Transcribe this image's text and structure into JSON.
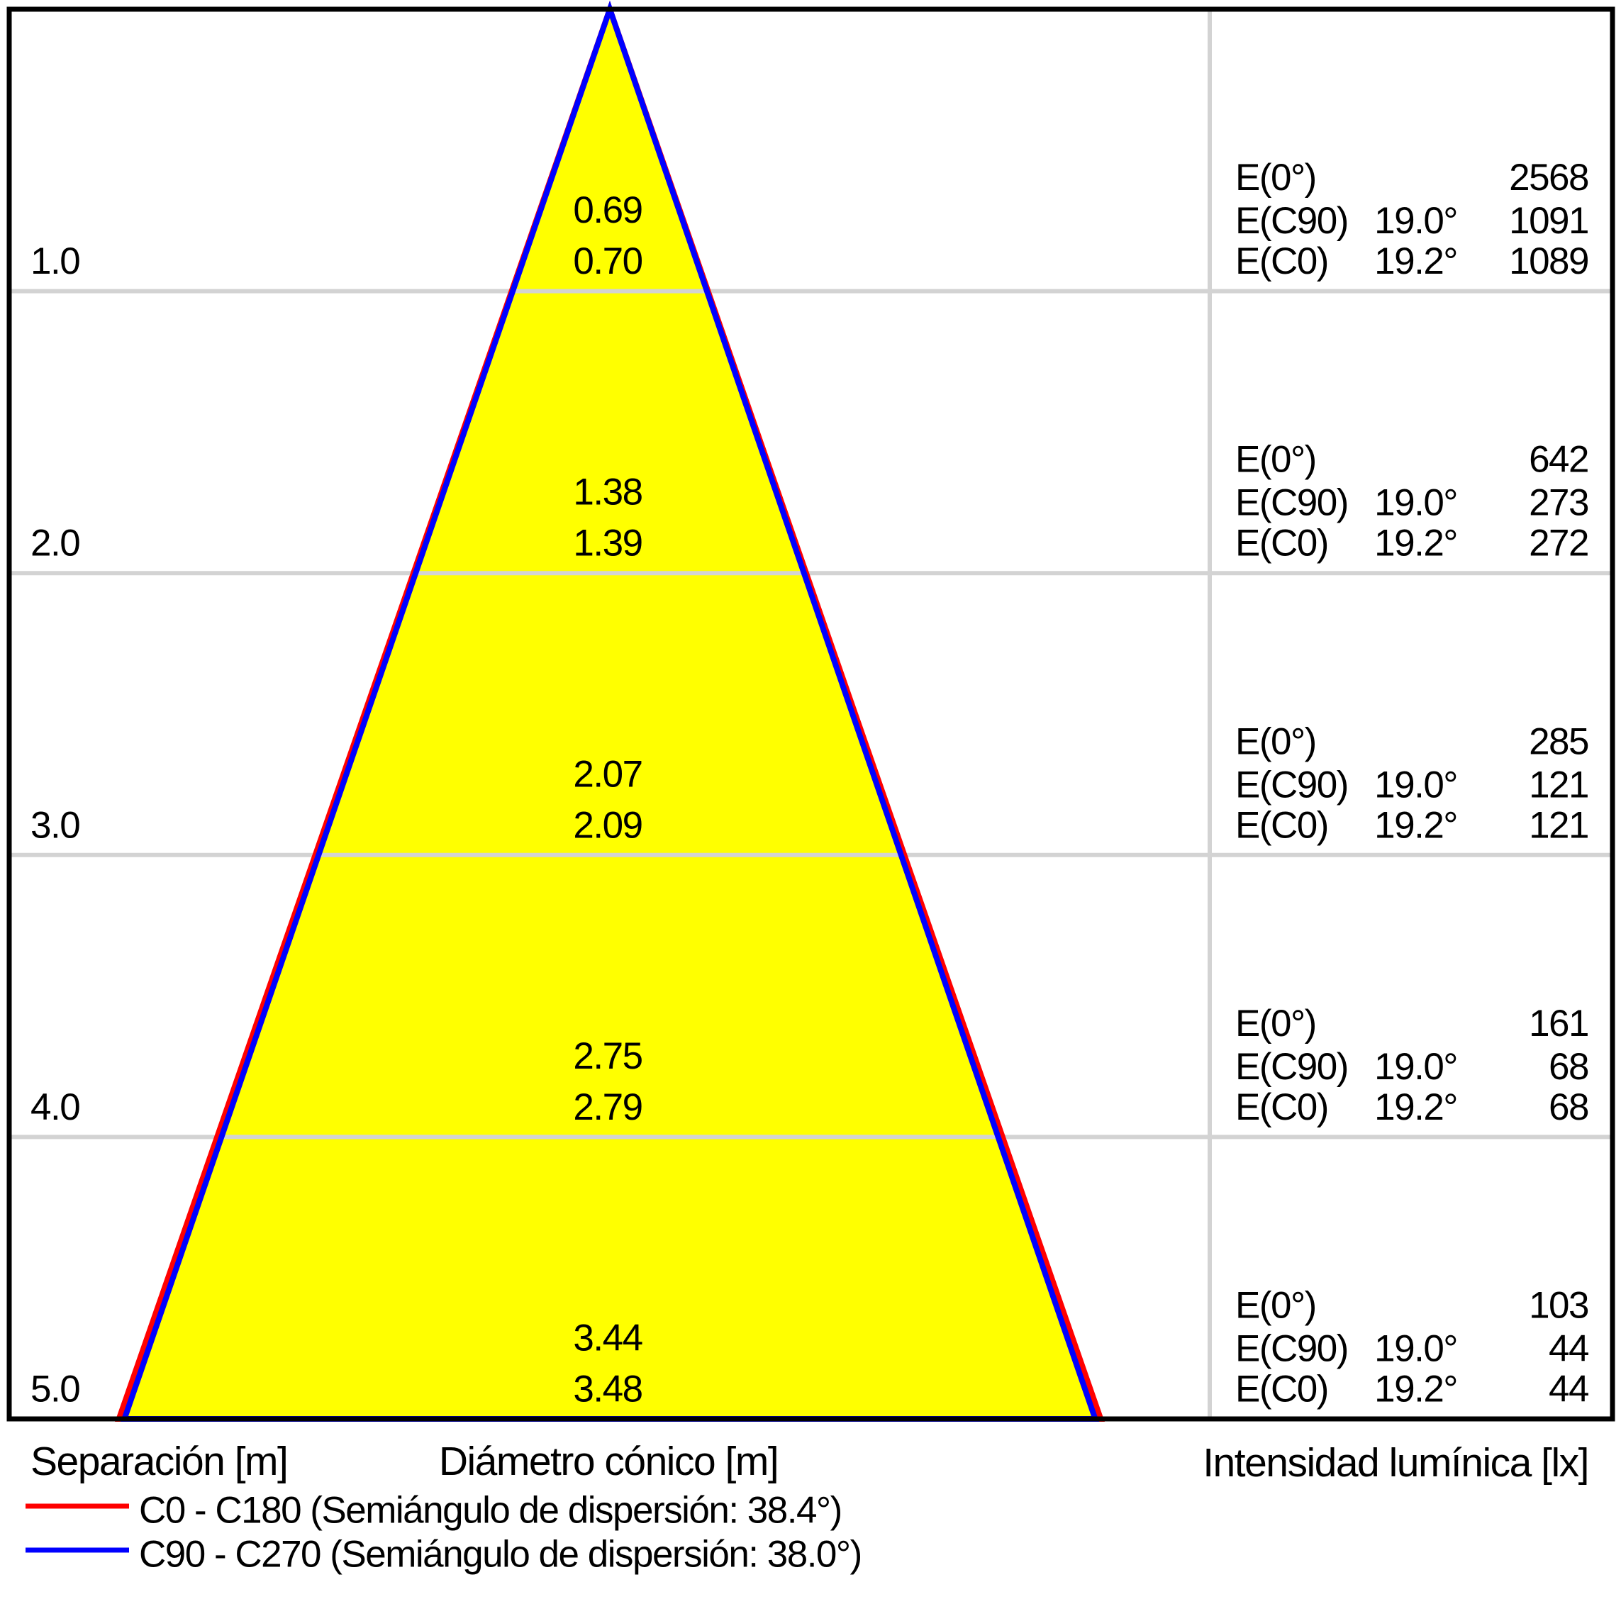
{
  "chart_data": {
    "type": "area",
    "subtype": "photometric_cone_diagram",
    "title": "",
    "cone_fill": "#ffff00",
    "grid_color": "#d3d3d3",
    "frame_color": "#000000",
    "axis": {
      "separation_label": "Separación [m]",
      "diameter_label": "Diámetro cónico [m]",
      "intensity_label": "Intensidad lumínica [lx]",
      "separation_range_m": [
        0,
        5
      ],
      "grid": "on"
    },
    "series": [
      {
        "name": "C0 - C180",
        "semi_angle_deg": 19.2,
        "dispersion_half_angle_label": "38.4°",
        "color": "#ff0000",
        "diameters_m": [
          0.7,
          1.39,
          2.09,
          2.79,
          3.48
        ]
      },
      {
        "name": "C90 - C270",
        "semi_angle_deg": 19.0,
        "dispersion_half_angle_label": "38.0°",
        "color": "#0000ff",
        "diameters_m": [
          0.69,
          1.38,
          2.07,
          2.75,
          3.44
        ]
      }
    ],
    "rows": [
      {
        "separation": "1.0",
        "diameters": [
          "0.69",
          "0.70"
        ],
        "intensity": [
          {
            "label": "E(0°)",
            "angle": "",
            "value": "2568"
          },
          {
            "label": "E(C90)",
            "angle": "19.0°",
            "value": "1091"
          },
          {
            "label": "E(C0)",
            "angle": "19.2°",
            "value": "1089"
          }
        ]
      },
      {
        "separation": "2.0",
        "diameters": [
          "1.38",
          "1.39"
        ],
        "intensity": [
          {
            "label": "E(0°)",
            "angle": "",
            "value": "642"
          },
          {
            "label": "E(C90)",
            "angle": "19.0°",
            "value": "273"
          },
          {
            "label": "E(C0)",
            "angle": "19.2°",
            "value": "272"
          }
        ]
      },
      {
        "separation": "3.0",
        "diameters": [
          "2.07",
          "2.09"
        ],
        "intensity": [
          {
            "label": "E(0°)",
            "angle": "",
            "value": "285"
          },
          {
            "label": "E(C90)",
            "angle": "19.0°",
            "value": "121"
          },
          {
            "label": "E(C0)",
            "angle": "19.2°",
            "value": "121"
          }
        ]
      },
      {
        "separation": "4.0",
        "diameters": [
          "2.75",
          "2.79"
        ],
        "intensity": [
          {
            "label": "E(0°)",
            "angle": "",
            "value": "161"
          },
          {
            "label": "E(C90)",
            "angle": "19.0°",
            "value": "68"
          },
          {
            "label": "E(C0)",
            "angle": "19.2°",
            "value": "68"
          }
        ]
      },
      {
        "separation": "5.0",
        "diameters": [
          "3.44",
          "3.48"
        ],
        "intensity": [
          {
            "label": "E(0°)",
            "angle": "",
            "value": "103"
          },
          {
            "label": "E(C90)",
            "angle": "19.0°",
            "value": "44"
          },
          {
            "label": "E(C0)",
            "angle": "19.2°",
            "value": "44"
          }
        ]
      }
    ]
  },
  "labels": {
    "separation": "Separación [m]",
    "diameter": "Diámetro cónico [m]",
    "intensity": "Intensidad lumínica [lx]"
  },
  "legend": {
    "items": [
      {
        "label": "C0 - C180 (Semiángulo de dispersión: 38.4°)",
        "color": "#ff0000"
      },
      {
        "label": "C90 - C270 (Semiángulo de dispersión: 38.0°)",
        "color": "#0000ff"
      }
    ]
  }
}
